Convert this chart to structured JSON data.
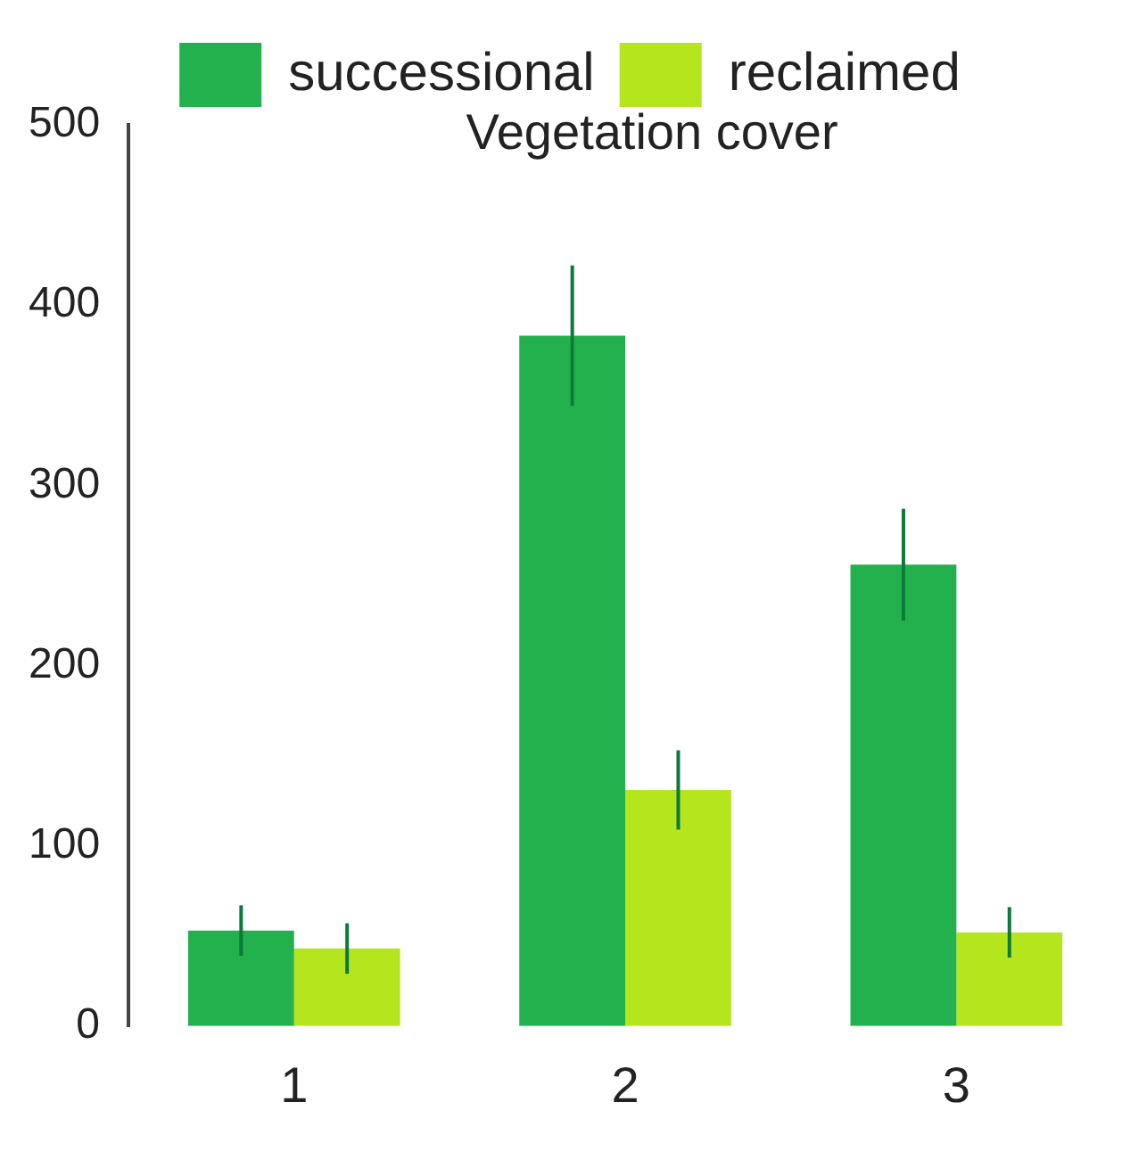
{
  "chart_data": {
    "type": "bar",
    "title": "Vegetation cover",
    "categories": [
      "1",
      "2",
      "3"
    ],
    "series": [
      {
        "name": "successional",
        "color": "#22b14c",
        "values": [
          53,
          383,
          256
        ],
        "errors": [
          14,
          39,
          31
        ]
      },
      {
        "name": "reclaimed",
        "color": "#b5e61d",
        "values": [
          43,
          131,
          52
        ],
        "errors": [
          14,
          22,
          14
        ]
      }
    ],
    "ylim": [
      0,
      500
    ],
    "yticks": [
      0,
      100,
      200,
      300,
      400,
      500
    ],
    "grid": false,
    "legend": "top"
  }
}
